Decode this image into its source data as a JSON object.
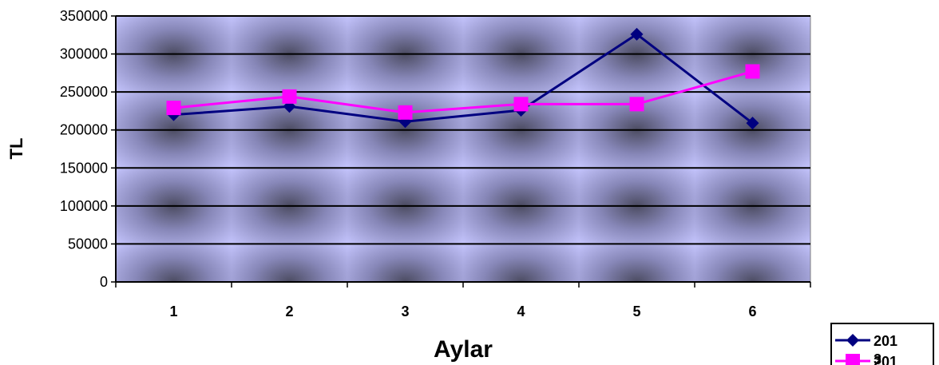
{
  "chart_data": {
    "type": "line",
    "categories": [
      "1",
      "2",
      "3",
      "4",
      "5",
      "6"
    ],
    "series": [
      {
        "name": "2013",
        "name_lines": [
          "201",
          "3"
        ],
        "marker": "diamond",
        "color": "#000080",
        "values": [
          220000,
          231000,
          211000,
          226000,
          326000,
          209000
        ]
      },
      {
        "name": "201",
        "name_lines": [
          "201"
        ],
        "marker": "square",
        "color": "#ff00ff",
        "values": [
          229000,
          244000,
          223000,
          234000,
          234000,
          277000
        ]
      }
    ],
    "yticks": [
      "0",
      "50000",
      "100000",
      "150000",
      "200000",
      "250000",
      "300000",
      "350000"
    ],
    "xlabel": "Aylar",
    "ylabel": "TL",
    "ylim": [
      0,
      350000
    ],
    "grid": "horizontal",
    "legend_position": "bottom-right"
  }
}
